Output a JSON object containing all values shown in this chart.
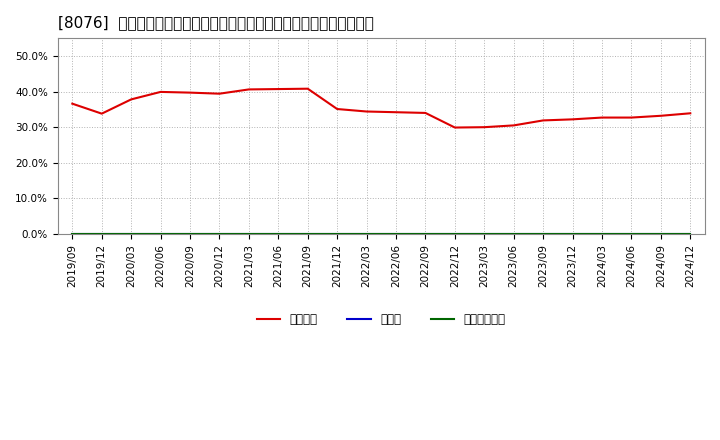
{
  "title": "[8076]  自己資本、のれん、繰延税金資産の総資産に対する比率の推移",
  "x_labels": [
    "2019/09",
    "2019/12",
    "2020/03",
    "2020/06",
    "2020/09",
    "2020/12",
    "2021/03",
    "2021/06",
    "2021/09",
    "2021/12",
    "2022/03",
    "2022/06",
    "2022/09",
    "2022/12",
    "2023/03",
    "2023/06",
    "2023/09",
    "2023/12",
    "2024/03",
    "2024/06",
    "2024/09",
    "2024/12"
  ],
  "equity_ratio": [
    0.366,
    0.338,
    0.378,
    0.399,
    0.397,
    0.394,
    0.406,
    0.407,
    0.408,
    0.351,
    0.344,
    0.342,
    0.34,
    0.299,
    0.3,
    0.305,
    0.319,
    0.322,
    0.327,
    0.327,
    0.332,
    0.339
  ],
  "noren_ratio": [
    0,
    0,
    0,
    0,
    0,
    0,
    0,
    0,
    0,
    0,
    0,
    0,
    0,
    0,
    0,
    0,
    0,
    0,
    0,
    0,
    0,
    0
  ],
  "dtax_ratio": [
    0,
    0,
    0,
    0,
    0,
    0,
    0,
    0,
    0,
    0,
    0,
    0,
    0,
    0,
    0,
    0,
    0,
    0,
    0,
    0,
    0,
    0
  ],
  "equity_color": "#dd0000",
  "noren_color": "#0000cc",
  "dtax_color": "#006600",
  "ylim": [
    0.0,
    0.55
  ],
  "yticks": [
    0.0,
    0.1,
    0.2,
    0.3,
    0.4,
    0.5
  ],
  "background_color": "#ffffff",
  "plot_bg_color": "#ffffff",
  "grid_color": "#aaaaaa",
  "legend_labels": [
    "自己資本",
    "のれん",
    "繰延税金資産"
  ],
  "title_fontsize": 11,
  "tick_fontsize": 7.5,
  "legend_fontsize": 8.5
}
